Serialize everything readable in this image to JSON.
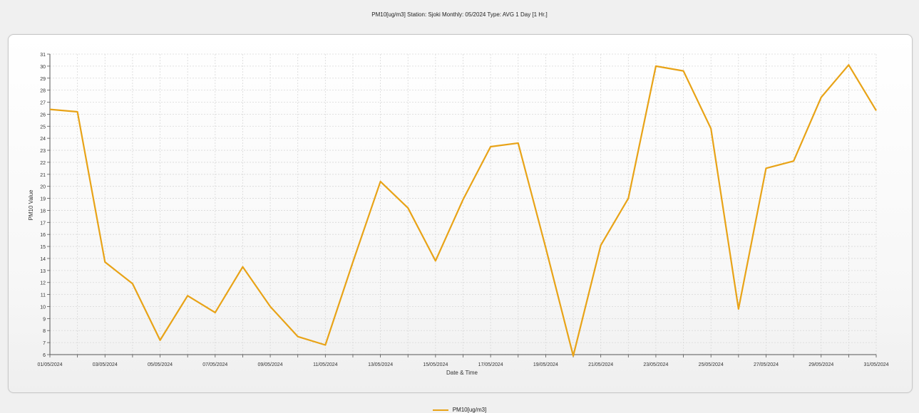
{
  "title": "PM10[ug/m3] Station: Sjoki  Monthly: 05/2024  Type: AVG 1 Day [1 Hr.]",
  "colors": {
    "series": "#e8a317",
    "grid": "#d8d8d8",
    "axis": "#555555"
  },
  "chart_data": {
    "type": "line",
    "title": "PM10[ug/m3] Station: Sjoki  Monthly: 05/2024  Type: AVG 1 Day [1 Hr.]",
    "xlabel": "Date & Time",
    "ylabel": "PM10 Value",
    "ylim": [
      6,
      31
    ],
    "yticks": [
      6,
      7,
      8,
      9,
      10,
      11,
      12,
      13,
      14,
      15,
      16,
      17,
      18,
      19,
      20,
      21,
      22,
      23,
      24,
      25,
      26,
      27,
      28,
      29,
      30,
      31
    ],
    "xlim": [
      "01/05/2024",
      "31/05/2024"
    ],
    "xtick_labels": [
      "01/05/2024",
      "03/05/2024",
      "05/05/2024",
      "07/05/2024",
      "09/05/2024",
      "11/05/2024",
      "13/05/2024",
      "15/05/2024",
      "17/05/2024",
      "19/05/2024",
      "21/05/2024",
      "23/05/2024",
      "25/05/2024",
      "27/05/2024",
      "29/05/2024",
      "31/05/2024"
    ],
    "grid": true,
    "legend": "bottom-center",
    "series": [
      {
        "name": "PM10[ug/m3]",
        "x": [
          "01/05/2024",
          "02/05/2024",
          "03/05/2024",
          "04/05/2024",
          "05/05/2024",
          "06/05/2024",
          "07/05/2024",
          "08/05/2024",
          "09/05/2024",
          "10/05/2024",
          "11/05/2024",
          "12/05/2024",
          "13/05/2024",
          "14/05/2024",
          "15/05/2024",
          "16/05/2024",
          "17/05/2024",
          "18/05/2024",
          "19/05/2024",
          "20/05/2024",
          "21/05/2024",
          "22/05/2024",
          "23/05/2024",
          "24/05/2024",
          "25/05/2024",
          "26/05/2024",
          "27/05/2024",
          "28/05/2024",
          "29/05/2024",
          "30/05/2024",
          "31/05/2024"
        ],
        "values": [
          26.4,
          26.2,
          13.7,
          11.9,
          7.2,
          10.9,
          9.5,
          13.3,
          10.0,
          7.5,
          6.8,
          13.7,
          20.4,
          18.2,
          13.8,
          18.9,
          23.3,
          23.6,
          14.9,
          5.9,
          15.1,
          19.0,
          30.0,
          29.6,
          24.8,
          9.8,
          21.5,
          22.1,
          27.4,
          30.1,
          26.3
        ]
      }
    ]
  }
}
